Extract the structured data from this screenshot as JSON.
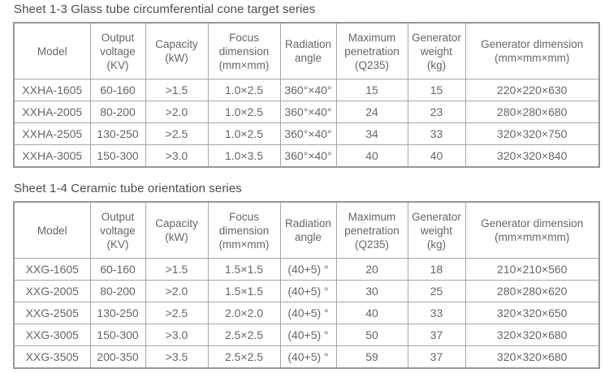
{
  "page": {
    "background": "#ffffff",
    "title_color": "#4d4d4d",
    "cell_text_color": "#666666",
    "border_color": "#a6a6a6"
  },
  "tables": [
    {
      "title": "Sheet 1-3 Glass tube circumferential cone target series",
      "headers": [
        [
          "Model"
        ],
        [
          "Output",
          "voltage",
          "(KV)"
        ],
        [
          "Capacity",
          "(kW)"
        ],
        [
          "Focus",
          "dimension",
          "(mm×mm)"
        ],
        [
          "Radiation",
          "angle"
        ],
        [
          "Maximum",
          "penetration",
          "(Q235)"
        ],
        [
          "Generator",
          "weight",
          "(kg)"
        ],
        [
          "Generator dimension",
          "(mm×mm×mm)"
        ]
      ],
      "rows": [
        [
          "XXHA-1605",
          "60-160",
          ">1.5",
          "1.0×2.5",
          "360°×40°",
          "15",
          "15",
          "220×220×630"
        ],
        [
          "XXHA-2005",
          "80-200",
          ">2.0",
          "1.0×2.5",
          "360°×40°",
          "24",
          "23",
          "280×280×680"
        ],
        [
          "XXHA-2505",
          "130-250",
          ">2.5",
          "1.0×2.5",
          "360°×40°",
          "34",
          "33",
          "320×320×750"
        ],
        [
          "XXHA-3005",
          "150-300",
          ">3.0",
          "1.0×3.5",
          "360°×40°",
          "40",
          "40",
          "320×320×840"
        ]
      ]
    },
    {
      "title": "Sheet 1-4 Ceramic tube orientation series",
      "headers": [
        [
          "Model"
        ],
        [
          "Output",
          "voltage",
          "(KV)"
        ],
        [
          "Capacity",
          "(kW)"
        ],
        [
          "Focus",
          "dimension",
          "(mm×mm)"
        ],
        [
          "Radiation",
          "angle"
        ],
        [
          "Maximum",
          "penetration",
          "(Q235)"
        ],
        [
          "Generator",
          "weight",
          "(kg)"
        ],
        [
          "Generator dimension",
          "(mm×mm×mm)"
        ]
      ],
      "rows": [
        [
          "XXG-1605",
          "60-160",
          ">1.5",
          "1.5×1.5",
          "(40+5) °",
          "20",
          "18",
          "210×210×560"
        ],
        [
          "XXG-2005",
          "80-200",
          ">2.0",
          "1.5×1.5",
          "(40+5) °",
          "30",
          "25",
          "280×280×620"
        ],
        [
          "XXG-2505",
          "130-250",
          ">2.5",
          "2.0×2.0",
          "(40+5) °",
          "40",
          "33",
          "320×320×650"
        ],
        [
          "XXG-3005",
          "150-300",
          ">3.0",
          "2.5×2.5",
          "(40+5) °",
          "50",
          "37",
          "320×320×680"
        ],
        [
          "XXG-3505",
          "200-350",
          ">3.5",
          "2.5×2.5",
          "(40+5) °",
          "59",
          "37",
          "320×320×680"
        ]
      ]
    }
  ]
}
